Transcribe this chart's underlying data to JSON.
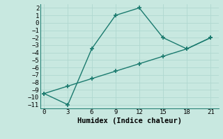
{
  "line1_x": [
    0,
    3,
    6,
    9,
    12,
    15,
    18,
    21
  ],
  "line1_y": [
    -9.5,
    -11,
    -3.5,
    1,
    2,
    -2,
    -3.5,
    -2
  ],
  "line2_x": [
    0,
    3,
    6,
    9,
    12,
    15,
    18,
    21
  ],
  "line2_y": [
    -9.5,
    -8.5,
    -7.5,
    -6.5,
    -5.5,
    -4.5,
    -3.5,
    -2
  ],
  "color": "#1a7a6e",
  "bg_color": "#c8e8e0",
  "grid_color": "#b0d8d0",
  "xlabel": "Humidex (Indice chaleur)",
  "xlim": [
    -0.5,
    22
  ],
  "ylim": [
    -11.5,
    2.5
  ],
  "xticks": [
    0,
    3,
    6,
    9,
    12,
    15,
    18,
    21
  ],
  "yticks": [
    2,
    1,
    0,
    -1,
    -2,
    -3,
    -4,
    -5,
    -6,
    -7,
    -8,
    -9,
    -10,
    -11
  ],
  "font_name": "monospace",
  "xlabel_fontsize": 7.5,
  "tick_fontsize": 6.5,
  "linewidth": 1.0,
  "markersize": 5,
  "markeredgewidth": 1.2
}
